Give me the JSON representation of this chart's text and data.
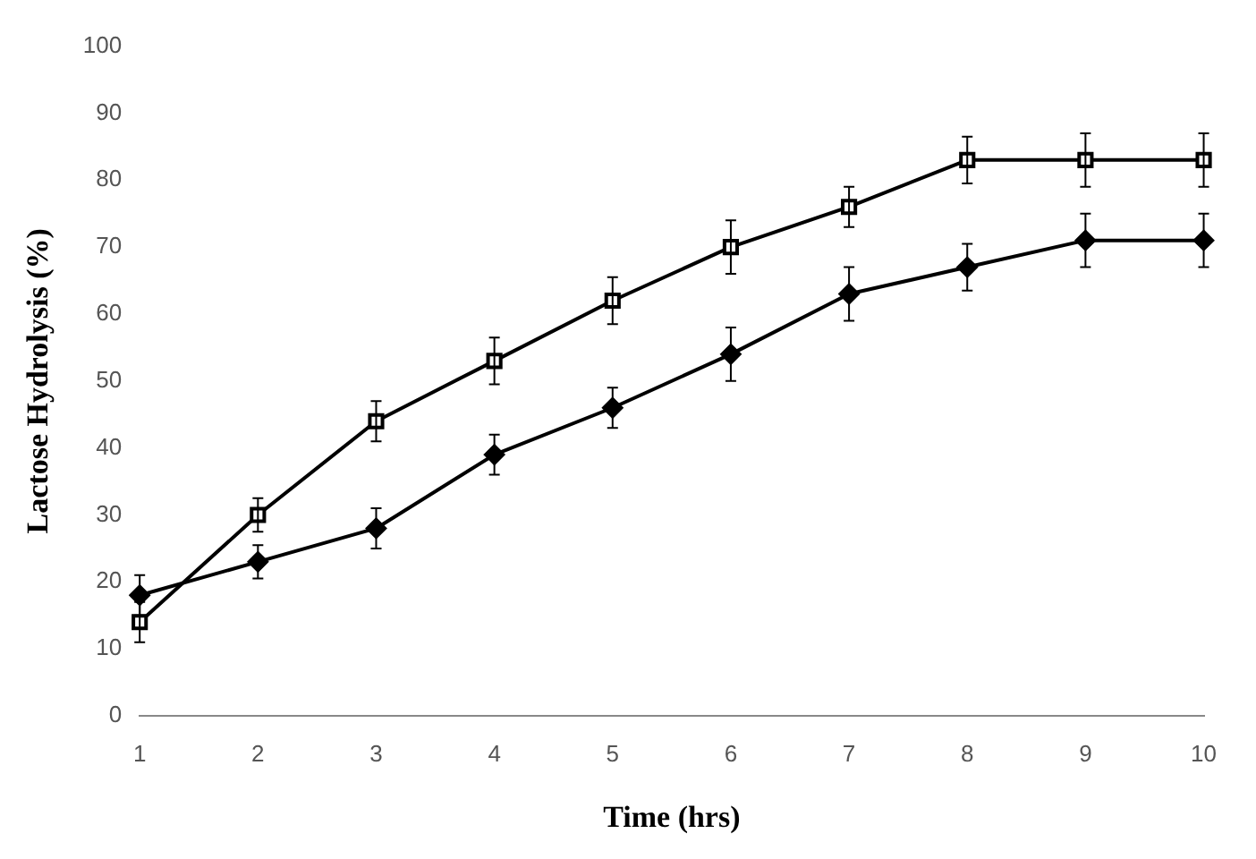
{
  "chart_data": {
    "type": "line",
    "xlabel": "Time (hrs)",
    "ylabel": "Lactose Hydrolysis (%)",
    "categories": [
      "1",
      "2",
      "3",
      "4",
      "5",
      "6",
      "7",
      "8",
      "9",
      "10"
    ],
    "series": [
      {
        "color": "#000000",
        "marker": "diamond",
        "values": [
          18,
          23,
          28,
          39,
          46,
          54,
          63,
          67,
          71,
          71
        ],
        "errors": [
          3,
          2.5,
          3,
          3,
          3,
          4,
          4,
          3.5,
          4,
          4
        ]
      },
      {
        "color": "#000000",
        "marker": "square",
        "values": [
          14,
          30,
          44,
          53,
          62,
          70,
          76,
          83,
          83,
          83
        ],
        "errors": [
          3,
          2.5,
          3,
          3.5,
          3.5,
          4,
          3,
          3.5,
          4,
          4
        ]
      }
    ],
    "ylim": [
      0,
      100
    ],
    "yticks": [
      0,
      10,
      20,
      30,
      40,
      50,
      60,
      70,
      80,
      90,
      100
    ],
    "grid": false,
    "legend": false
  }
}
